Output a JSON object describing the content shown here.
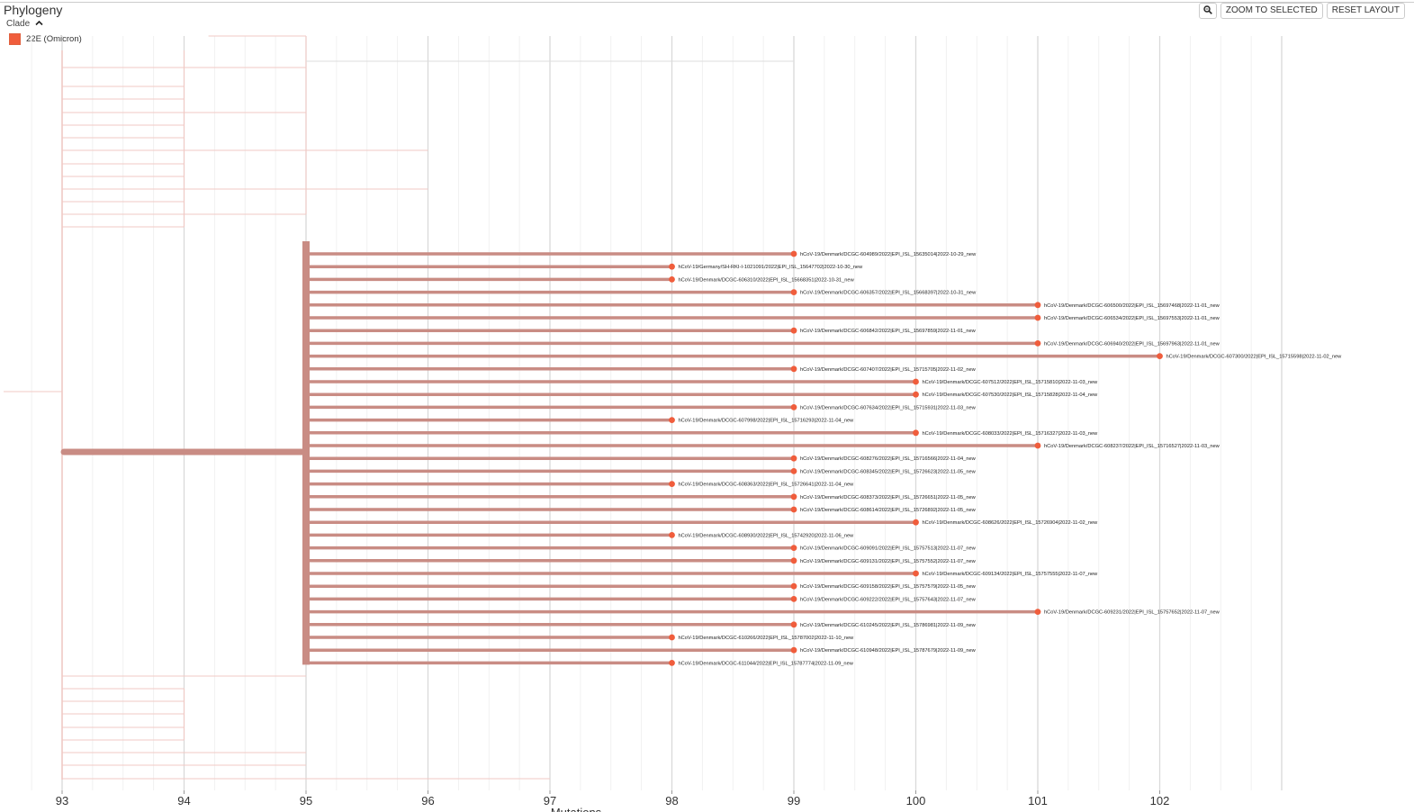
{
  "panel": {
    "title": "Phylogeny"
  },
  "toolbar": {
    "zoom_icon": "magnifier-icon",
    "zoom_to_selected_label": "ZOOM TO SELECTED",
    "reset_layout_label": "RESET LAYOUT"
  },
  "legend": {
    "toggle_label": "Clade",
    "toggle_icon": "chevron-up-icon",
    "entries": [
      {
        "label": "22E (Omicron)",
        "color": "#f05d3c"
      }
    ]
  },
  "colors": {
    "branch": "#c98c84",
    "tip": "#f05d3c",
    "faded": "#f2c9c4",
    "grid": "#e6e6e6"
  },
  "axis": {
    "ticks": [
      "93",
      "94",
      "95",
      "96",
      "97",
      "98",
      "99",
      "100",
      "101",
      "102"
    ],
    "label": "Mutations"
  },
  "chart_data": {
    "type": "phylogenetic-tree",
    "x_axis": {
      "label": "Mutations",
      "range": [
        93,
        102
      ]
    },
    "clade_node_divergence": 95,
    "tips": [
      {
        "name": "hCoV-19/Denmark/DCGC-604989/2022|EPI_ISL_15635014|2022-10-29_new",
        "divergence": 99
      },
      {
        "name": "hCoV-19/Germany/SH-RKI-I-1021091/2022|EPI_ISL_15647702|2022-10-30_new",
        "divergence": 98
      },
      {
        "name": "hCoV-19/Denmark/DCGC-606310/2022|EPI_ISL_15668351|2022-10-31_new",
        "divergence": 98
      },
      {
        "name": "hCoV-19/Denmark/DCGC-606357/2022|EPI_ISL_15668397|2022-10-31_new",
        "divergence": 99
      },
      {
        "name": "hCoV-19/Denmark/DCGC-606500/2022|EPI_ISL_15697468|2022-11-01_new",
        "divergence": 101
      },
      {
        "name": "hCoV-19/Denmark/DCGC-606534/2022|EPI_ISL_15697553|2022-11-01_new",
        "divergence": 101
      },
      {
        "name": "hCoV-19/Denmark/DCGC-606842/2022|EPI_ISL_15697859|2022-11-01_new",
        "divergence": 99
      },
      {
        "name": "hCoV-19/Denmark/DCGC-606940/2022|EPI_ISL_15697963|2022-11-01_new",
        "divergence": 101
      },
      {
        "name": "hCoV-19/Denmark/DCGC-607300/2022|EPI_ISL_15715598|2022-11-02_new",
        "divergence": 102
      },
      {
        "name": "hCoV-19/Denmark/DCGC-607407/2022|EPI_ISL_15715705|2022-11-02_new",
        "divergence": 99
      },
      {
        "name": "hCoV-19/Denmark/DCGC-607512/2022|EPI_ISL_15715810|2022-11-03_new",
        "divergence": 100
      },
      {
        "name": "hCoV-19/Denmark/DCGC-607530/2022|EPI_ISL_15715828|2022-11-04_new",
        "divergence": 100
      },
      {
        "name": "hCoV-19/Denmark/DCGC-607634/2022|EPI_ISL_15715931|2022-11-03_new",
        "divergence": 99
      },
      {
        "name": "hCoV-19/Denmark/DCGC-607998/2022|EPI_ISL_15716293|2022-11-04_new",
        "divergence": 98
      },
      {
        "name": "hCoV-19/Denmark/DCGC-608033/2022|EPI_ISL_15716327|2022-11-03_new",
        "divergence": 100
      },
      {
        "name": "hCoV-19/Denmark/DCGC-608237/2022|EPI_ISL_15716527|2022-11-03_new",
        "divergence": 101
      },
      {
        "name": "hCoV-19/Denmark/DCGC-608276/2022|EPI_ISL_15716566|2022-11-04_new",
        "divergence": 99
      },
      {
        "name": "hCoV-19/Denmark/DCGC-608345/2022|EPI_ISL_15726623|2022-11-05_new",
        "divergence": 99
      },
      {
        "name": "hCoV-19/Denmark/DCGC-608363/2022|EPI_ISL_15726641|2022-11-04_new",
        "divergence": 98
      },
      {
        "name": "hCoV-19/Denmark/DCGC-608373/2022|EPI_ISL_15726651|2022-11-05_new",
        "divergence": 99
      },
      {
        "name": "hCoV-19/Denmark/DCGC-608614/2022|EPI_ISL_15726892|2022-11-05_new",
        "divergence": 99
      },
      {
        "name": "hCoV-19/Denmark/DCGC-608626/2022|EPI_ISL_15726904|2022-11-02_new",
        "divergence": 100
      },
      {
        "name": "hCoV-19/Denmark/DCGC-608930/2022|EPI_ISL_15742920|2022-11-06_new",
        "divergence": 98
      },
      {
        "name": "hCoV-19/Denmark/DCGC-609091/2022|EPI_ISL_15757513|2022-11-07_new",
        "divergence": 99
      },
      {
        "name": "hCoV-19/Denmark/DCGC-609131/2022|EPI_ISL_15757552|2022-11-07_new",
        "divergence": 99
      },
      {
        "name": "hCoV-19/Denmark/DCGC-609134/2022|EPI_ISL_15757555|2022-11-07_new",
        "divergence": 100
      },
      {
        "name": "hCoV-19/Denmark/DCGC-609158/2022|EPI_ISL_15757579|2022-11-05_new",
        "divergence": 99
      },
      {
        "name": "hCoV-19/Denmark/DCGC-609222/2022|EPI_ISL_15757643|2022-11-07_new",
        "divergence": 99
      },
      {
        "name": "hCoV-19/Denmark/DCGC-609231/2022|EPI_ISL_15757652|2022-11-07_new",
        "divergence": 101
      },
      {
        "name": "hCoV-19/Denmark/DCGC-610245/2022|EPI_ISL_15786981|2022-11-09_new",
        "divergence": 99
      },
      {
        "name": "hCoV-19/Denmark/DCGC-610266/2022|EPI_ISL_15787002|2022-11-10_new",
        "divergence": 98
      },
      {
        "name": "hCoV-19/Denmark/DCGC-610948/2022|EPI_ISL_15787679|2022-11-09_new",
        "divergence": 99
      },
      {
        "name": "hCoV-19/Denmark/DCGC-611044/2022|EPI_ISL_15787774|2022-11-09_new",
        "divergence": 98
      }
    ]
  }
}
